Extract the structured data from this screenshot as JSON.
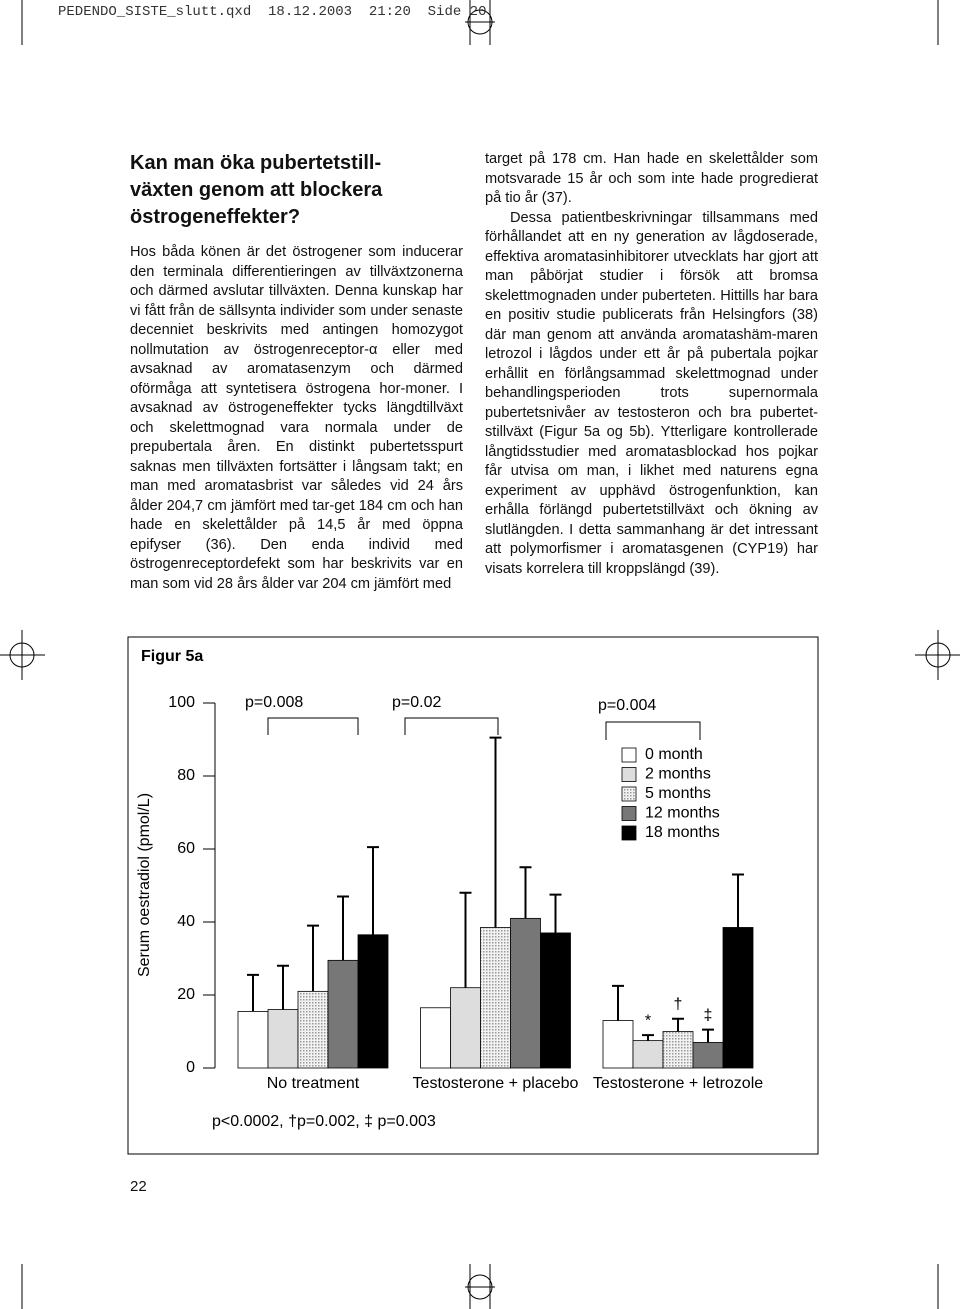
{
  "header": "PEDENDO_SISTE_slutt.qxd  18.12.2003  21:20  Side 20",
  "title": [
    "Kan man öka pubertetstill-",
    "växten genom att blockera",
    "östrogeneffekter?"
  ],
  "left_column": [
    "Hos båda könen är det östrogener som inducerar den terminala differentieringen av tillväxtzonerna och därmed avslutar tillväxten. Denna kunskap har vi fått från de sällsynta individer som under senaste decenniet beskrivits med antingen homozygot nollmutation av östrogenreceptor-α eller med avsaknad av aromatasenzym och därmed oförmåga att syntetisera östrogena hor-moner. I avsaknad av östrogeneffekter tycks längdtillväxt och skelettmognad vara normala under de prepubertala åren. En distinkt pubertetsspurt saknas men tillväxten fortsätter i långsam takt; en man med aromatasbrist var således vid 24 års ålder 204,7 cm jämfört med tar-get 184 cm och han hade en skelettålder på 14,5 år med öppna epifyser (36). Den enda individ med östrogenreceptordefekt som har beskrivits var en man som vid 28 års ålder var 204 cm jämfört med"
  ],
  "right_column": [
    "target på 178 cm. Han hade en skelettålder som motsvarade 15 år och som inte hade progredierat på tio år (37).",
    "Dessa patientbeskrivningar tillsammans med förhållandet att en ny generation av lågdoserade, effektiva aromatasinhibitorer utvecklats har gjort att man påbörjat studier i försök att bromsa skelettmognaden under puberteten. Hittills har bara en positiv studie publicerats från Helsingfors (38) där man genom att använda aromatashäm-maren letrozol i lågdos under ett år på pubertala pojkar erhållit en förlångsammad skelettmognad under behandlingsperioden trots supernormala pubertetsnivåer av testosteron och bra pubertet-stillväxt (Figur 5a og 5b). Ytterligare kontrollerade långtidsstudier med aromatasblockad hos pojkar får utvisa om man, i likhet med naturens egna experiment av upphävd östrogenfunktion, kan erhålla förlängd pubertetstillväxt och ökning av slutlängden. I detta sammanhang är det intressant att polymorfismer i aromatasgenen (CYP19) har visats korrelera till kroppslängd (39)."
  ],
  "page_number": "22",
  "chart_data": {
    "type": "bar",
    "title": "Figur 5a",
    "y_label": "Serum oestradiol (pmol/L)",
    "categories": [
      "No treatment",
      "Testosterone + placebo",
      "Testosterone + letrozole"
    ],
    "series": [
      {
        "name": "0 month",
        "color": "#ffffff",
        "values": [
          15.5,
          16.5,
          13
        ],
        "errors": [
          10,
          null,
          9.5
        ]
      },
      {
        "name": "2 months",
        "color": "#dddddd",
        "values": [
          16,
          22,
          7.5
        ],
        "errors": [
          12,
          26,
          1.5
        ],
        "markers": [
          null,
          null,
          "*"
        ]
      },
      {
        "name": "5 months",
        "color": "#e6e6e6",
        "pattern": "dotted",
        "values": [
          21,
          38.5,
          10
        ],
        "errors": [
          18,
          52,
          3.5
        ],
        "markers": [
          null,
          null,
          "†"
        ]
      },
      {
        "name": "12 months",
        "color": "#777777",
        "values": [
          29.5,
          41,
          7
        ],
        "errors": [
          17.5,
          14,
          3.5
        ],
        "markers": [
          null,
          null,
          "‡"
        ]
      },
      {
        "name": "18 months",
        "color": "#000000",
        "values": [
          36.5,
          37,
          38.5
        ],
        "errors": [
          24,
          10.5,
          14.5
        ]
      }
    ],
    "annotations": [
      "p=0.008",
      "p=0.02",
      "p=0.004"
    ],
    "note": "p<0.0002, †p=0.002, ‡ p=0.003",
    "ylim": [
      0,
      100
    ],
    "yticks": [
      0,
      20,
      40,
      60,
      80,
      100
    ],
    "legend": "upper-right"
  }
}
